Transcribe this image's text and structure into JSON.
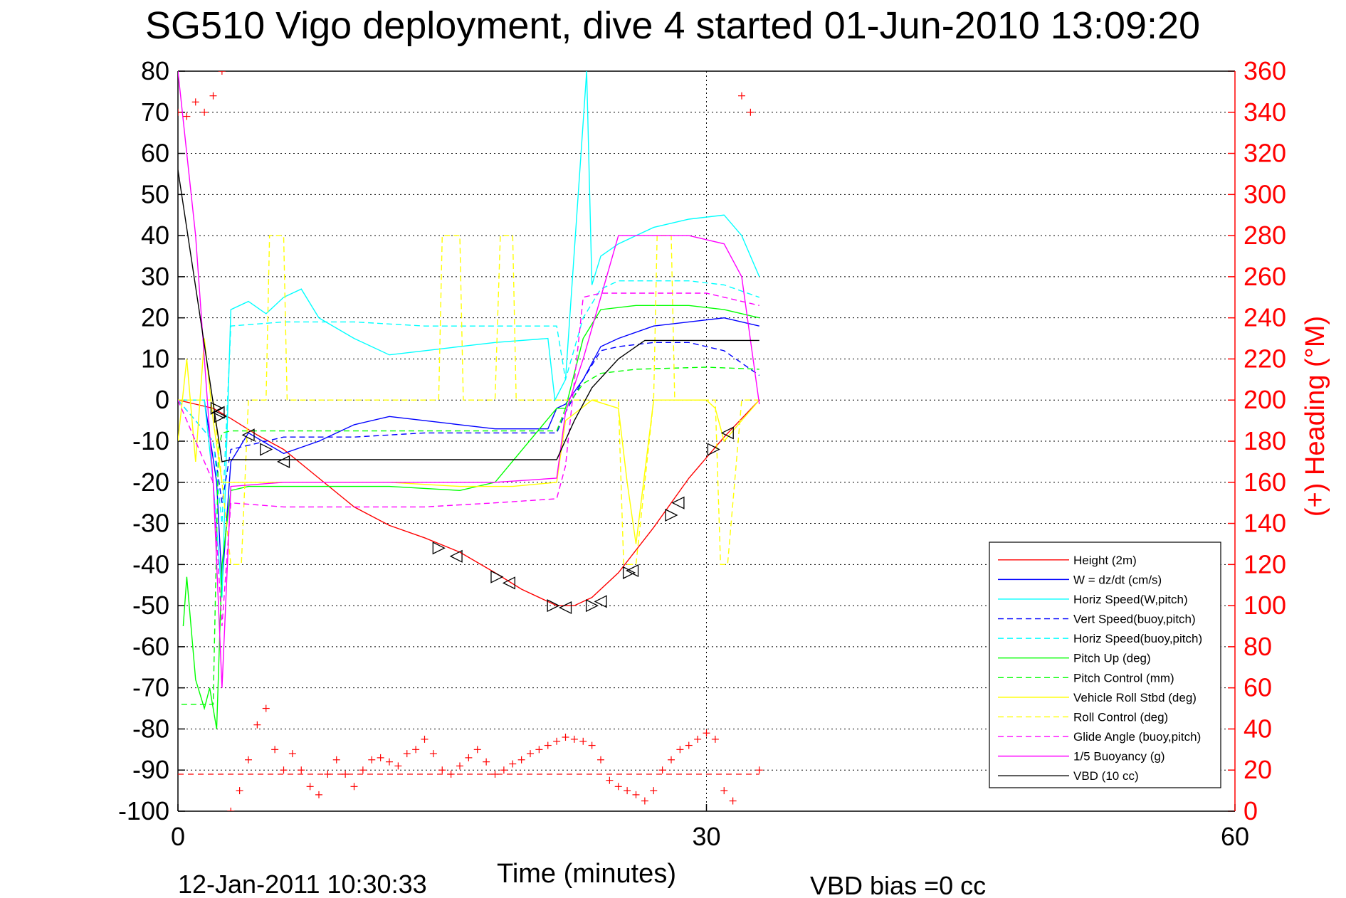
{
  "chart_data": {
    "type": "line",
    "title": "SG510 Vigo deployment, dive 4 started 01-Jun-2010 13:09:20",
    "xlabel": "Time (minutes)",
    "ylabel_right": "(+) Heading (°M)",
    "xlim": [
      0,
      60
    ],
    "ylim": [
      -100,
      80
    ],
    "y2lim": [
      0,
      360
    ],
    "x_ticks": [
      "0",
      "30",
      "60"
    ],
    "y_ticks": [
      "80",
      "70",
      "60",
      "50",
      "40",
      "30",
      "20",
      "10",
      "0",
      "-10",
      "-20",
      "-30",
      "-40",
      "-50",
      "-60",
      "-70",
      "-80",
      "-90",
      "-100"
    ],
    "y2_ticks": [
      "360",
      "340",
      "320",
      "300",
      "280",
      "260",
      "240",
      "220",
      "200",
      "180",
      "160",
      "140",
      "120",
      "100",
      "80",
      "60",
      "40",
      "20",
      "0"
    ],
    "grid": true,
    "legend_position": "bottom-right",
    "footer_timestamp": "12-Jan-2011 10:30:33",
    "footer_bias": "VBD bias =0 cc",
    "colors": {
      "red": "#ff0000",
      "blue": "#0000ff",
      "cyan": "#00ffff",
      "green": "#00ff00",
      "yellow": "#ffff00",
      "magenta": "#ff00ff",
      "black": "#000000"
    },
    "series": [
      {
        "name": "Height (2m)",
        "color": "#ff0000",
        "style": "solid",
        "x": [
          0,
          1,
          2,
          3,
          4.5,
          6,
          8,
          10,
          12,
          14,
          16,
          18,
          19.5,
          21.5,
          22.5,
          23.5,
          25,
          27,
          29,
          31,
          33
        ],
        "y": [
          0,
          -1,
          -2,
          -4.5,
          -8.5,
          -12,
          -19,
          -26,
          -30.5,
          -33.5,
          -37,
          -42,
          -46,
          -50,
          -50,
          -48,
          -42,
          -31,
          -19,
          -9,
          0
        ]
      },
      {
        "name": "W = dz/dt (cm/s)",
        "color": "#0000ff",
        "style": "solid",
        "x": [
          0,
          1.5,
          2.2,
          2.5,
          3,
          4,
          6,
          8,
          10,
          12,
          14,
          16,
          18,
          21,
          21.5,
          22,
          23,
          24,
          25,
          27,
          29,
          31,
          32,
          33
        ],
        "y": [
          0,
          0,
          -20,
          -45,
          -15,
          -8,
          -13,
          -10,
          -6,
          -4,
          -5,
          -6,
          -7,
          -7,
          -2,
          -1,
          5,
          13,
          15,
          18,
          19,
          20,
          19,
          18
        ]
      },
      {
        "name": "Horiz Speed(W,pitch)",
        "color": "#00ffff",
        "style": "solid",
        "x": [
          0,
          1.5,
          2,
          2.5,
          3,
          4,
          5,
          6,
          7,
          8,
          10,
          12,
          14,
          16,
          18,
          21,
          21.4,
          22,
          23.2,
          23.5,
          24,
          25,
          27,
          29,
          31,
          32,
          33
        ],
        "y": [
          0,
          0,
          -20,
          -48,
          22,
          24,
          21,
          25,
          27,
          20,
          15,
          11,
          12,
          13,
          14,
          15,
          0,
          5,
          80,
          28,
          35,
          38,
          42,
          44,
          45,
          40,
          30
        ]
      },
      {
        "name": "Vert Speed(buoy,pitch)",
        "color": "#0000ff",
        "style": "dashed",
        "x": [
          0,
          2,
          2.5,
          3,
          6,
          10,
          14,
          18,
          21.5,
          22,
          23,
          24,
          25,
          27,
          29,
          31,
          33
        ],
        "y": [
          0,
          -10,
          -25,
          -12,
          -9,
          -9,
          -8,
          -8,
          -8,
          -3,
          5,
          12,
          13,
          14,
          14,
          12,
          6
        ]
      },
      {
        "name": "Horiz Speed(buoy,pitch)",
        "color": "#00ffff",
        "style": "dashed",
        "x": [
          0,
          2,
          2.5,
          3,
          6,
          10,
          14,
          18,
          21.5,
          22,
          23,
          24,
          25,
          27,
          29,
          31,
          33
        ],
        "y": [
          0,
          -10,
          -30,
          18,
          19,
          19,
          18,
          18,
          18,
          5,
          20,
          27,
          29,
          29,
          29,
          28,
          25
        ]
      },
      {
        "name": "Pitch Up (deg)",
        "color": "#00ff00",
        "style": "solid",
        "x": [
          0.3,
          0.5,
          1,
          1.5,
          1.8,
          2.2,
          2.5,
          3,
          4,
          8,
          12,
          16,
          18,
          21.5,
          22,
          23,
          24,
          26,
          29,
          31,
          33
        ],
        "y": [
          -55,
          -43,
          -68,
          -75,
          -70,
          -80,
          -40,
          -22,
          -21,
          -21,
          -21,
          -22,
          -20,
          -2,
          -2,
          15,
          22,
          23,
          23,
          22,
          20
        ]
      },
      {
        "name": "Pitch Control (mm)",
        "color": "#00ff00",
        "style": "dashed",
        "x": [
          0.2,
          2,
          2.3,
          2.5,
          3,
          6,
          10,
          14,
          18,
          21.5,
          22,
          23,
          24,
          26,
          30,
          33
        ],
        "y": [
          -74,
          -74,
          -12,
          -8,
          -7.5,
          -7.5,
          -7.5,
          -7.5,
          -7.5,
          -7.5,
          -2,
          4,
          6.5,
          7.5,
          8,
          7.5
        ]
      },
      {
        "name": "Vehicle Roll Stbd (deg)",
        "color": "#ffff00",
        "style": "solid",
        "x": [
          0,
          0.5,
          1,
          1.5,
          2,
          2.5,
          3,
          5,
          8,
          12,
          16,
          19,
          21.5,
          22,
          23.5,
          25,
          25.5,
          26,
          27,
          28.5,
          30,
          30.5,
          31,
          32,
          33
        ],
        "y": [
          -10,
          10,
          -15,
          15,
          -5,
          -20,
          -20,
          -20,
          -20,
          -20,
          -21,
          -21,
          -20,
          -5,
          0,
          -2,
          -20,
          -35,
          0,
          0,
          0,
          -2,
          -10,
          -5,
          0
        ]
      },
      {
        "name": "Roll Control (deg)",
        "color": "#ffff00",
        "style": "dashed",
        "x": [
          0,
          2,
          3,
          3.6,
          4,
          5,
          5.2,
          6,
          6.2,
          10,
          14.8,
          15,
          16,
          16.2,
          18,
          18.3,
          19,
          19.2,
          21.5,
          25,
          25.3,
          26,
          27,
          27.2,
          28,
          28.2,
          30.5,
          30.8,
          31.2,
          32,
          33
        ],
        "y": [
          0,
          0,
          -40,
          -40,
          0,
          0,
          40,
          40,
          0,
          0,
          0,
          40,
          40,
          0,
          0,
          40,
          40,
          0,
          0,
          0,
          -40,
          -40,
          0,
          40,
          40,
          0,
          0,
          -40,
          -40,
          0,
          0
        ]
      },
      {
        "name": "Glide Angle (buoy,pitch)",
        "color": "#ff00ff",
        "style": "dashed",
        "x": [
          0,
          2,
          2.5,
          3,
          6,
          10,
          14,
          18,
          21.5,
          22,
          23,
          24,
          26,
          30,
          33
        ],
        "y": [
          0,
          -20,
          -55,
          -25,
          -26,
          -26,
          -26,
          -25,
          -24,
          -16,
          25,
          26,
          26,
          26,
          23
        ]
      },
      {
        "name": "1/5 Buoyancy (g)",
        "color": "#ff00ff",
        "style": "solid",
        "x": [
          0,
          1,
          2,
          2.5,
          3,
          6,
          10,
          14,
          18,
          21.5,
          22,
          23,
          24,
          25,
          27,
          29,
          31,
          32,
          33
        ],
        "y": [
          80,
          40,
          -20,
          -70,
          -21,
          -20,
          -20,
          -20,
          -20,
          -19,
          -3,
          10,
          25,
          40,
          40,
          40,
          38,
          30,
          -1
        ]
      },
      {
        "name": "VBD (10 cc)",
        "color": "#000000",
        "style": "solid",
        "x": [
          0,
          2.5,
          3,
          6,
          10,
          14,
          18,
          21.5,
          22.5,
          23.5,
          25,
          26.5,
          28,
          30,
          33
        ],
        "y": [
          56,
          -15,
          -14.5,
          -14.5,
          -14.5,
          -14.5,
          -14.5,
          -14.5,
          -5,
          3,
          10,
          14.5,
          14.5,
          14.5,
          14.5
        ]
      }
    ],
    "heading_points": {
      "color": "#ff0000",
      "x": [
        0,
        0.5,
        1,
        1.5,
        2,
        2.5,
        3,
        3.5,
        4,
        4.5,
        5,
        5.5,
        6,
        6.5,
        7,
        7.5,
        8,
        8.5,
        9,
        9.5,
        10,
        10.5,
        11,
        11.5,
        12,
        12.5,
        13,
        13.5,
        14,
        14.5,
        15,
        15.5,
        16,
        16.5,
        17,
        17.5,
        18,
        18.5,
        19,
        19.5,
        20,
        20.5,
        21,
        21.5,
        22,
        22.5,
        23,
        23.5,
        24,
        24.5,
        25,
        25.5,
        26,
        26.5,
        27,
        27.5,
        28,
        28.5,
        29,
        29.5,
        30,
        30.5,
        31,
        31.5,
        32,
        32.5,
        33
      ],
      "y": [
        340,
        338,
        345,
        340,
        348,
        360,
        0,
        10,
        25,
        42,
        50,
        30,
        20,
        28,
        20,
        12,
        8,
        18,
        25,
        18,
        12,
        20,
        25,
        26,
        24,
        22,
        28,
        30,
        35,
        28,
        20,
        18,
        22,
        26,
        30,
        24,
        18,
        20,
        23,
        25,
        28,
        30,
        32,
        34,
        36,
        35,
        34,
        32,
        25,
        15,
        12,
        10,
        8,
        5,
        10,
        20,
        25,
        30,
        32,
        35,
        38,
        35,
        10,
        5,
        348,
        340,
        20
      ]
    },
    "heading_reference": 18,
    "markers": {
      "x": [
        2.2,
        2.3,
        2.4,
        4,
        5,
        6,
        14.8,
        15.8,
        18.1,
        18.8,
        21.3,
        22,
        23.5,
        24,
        25.6,
        25.8,
        28,
        28.4,
        30.4,
        31.2
      ],
      "y": [
        -2,
        -3,
        -4,
        -8.5,
        -12,
        -15,
        -36,
        -38,
        -43,
        -44.5,
        -50,
        -50.5,
        -50,
        -49,
        -42,
        -41.5,
        -28,
        -25,
        -12,
        -8
      ]
    }
  }
}
